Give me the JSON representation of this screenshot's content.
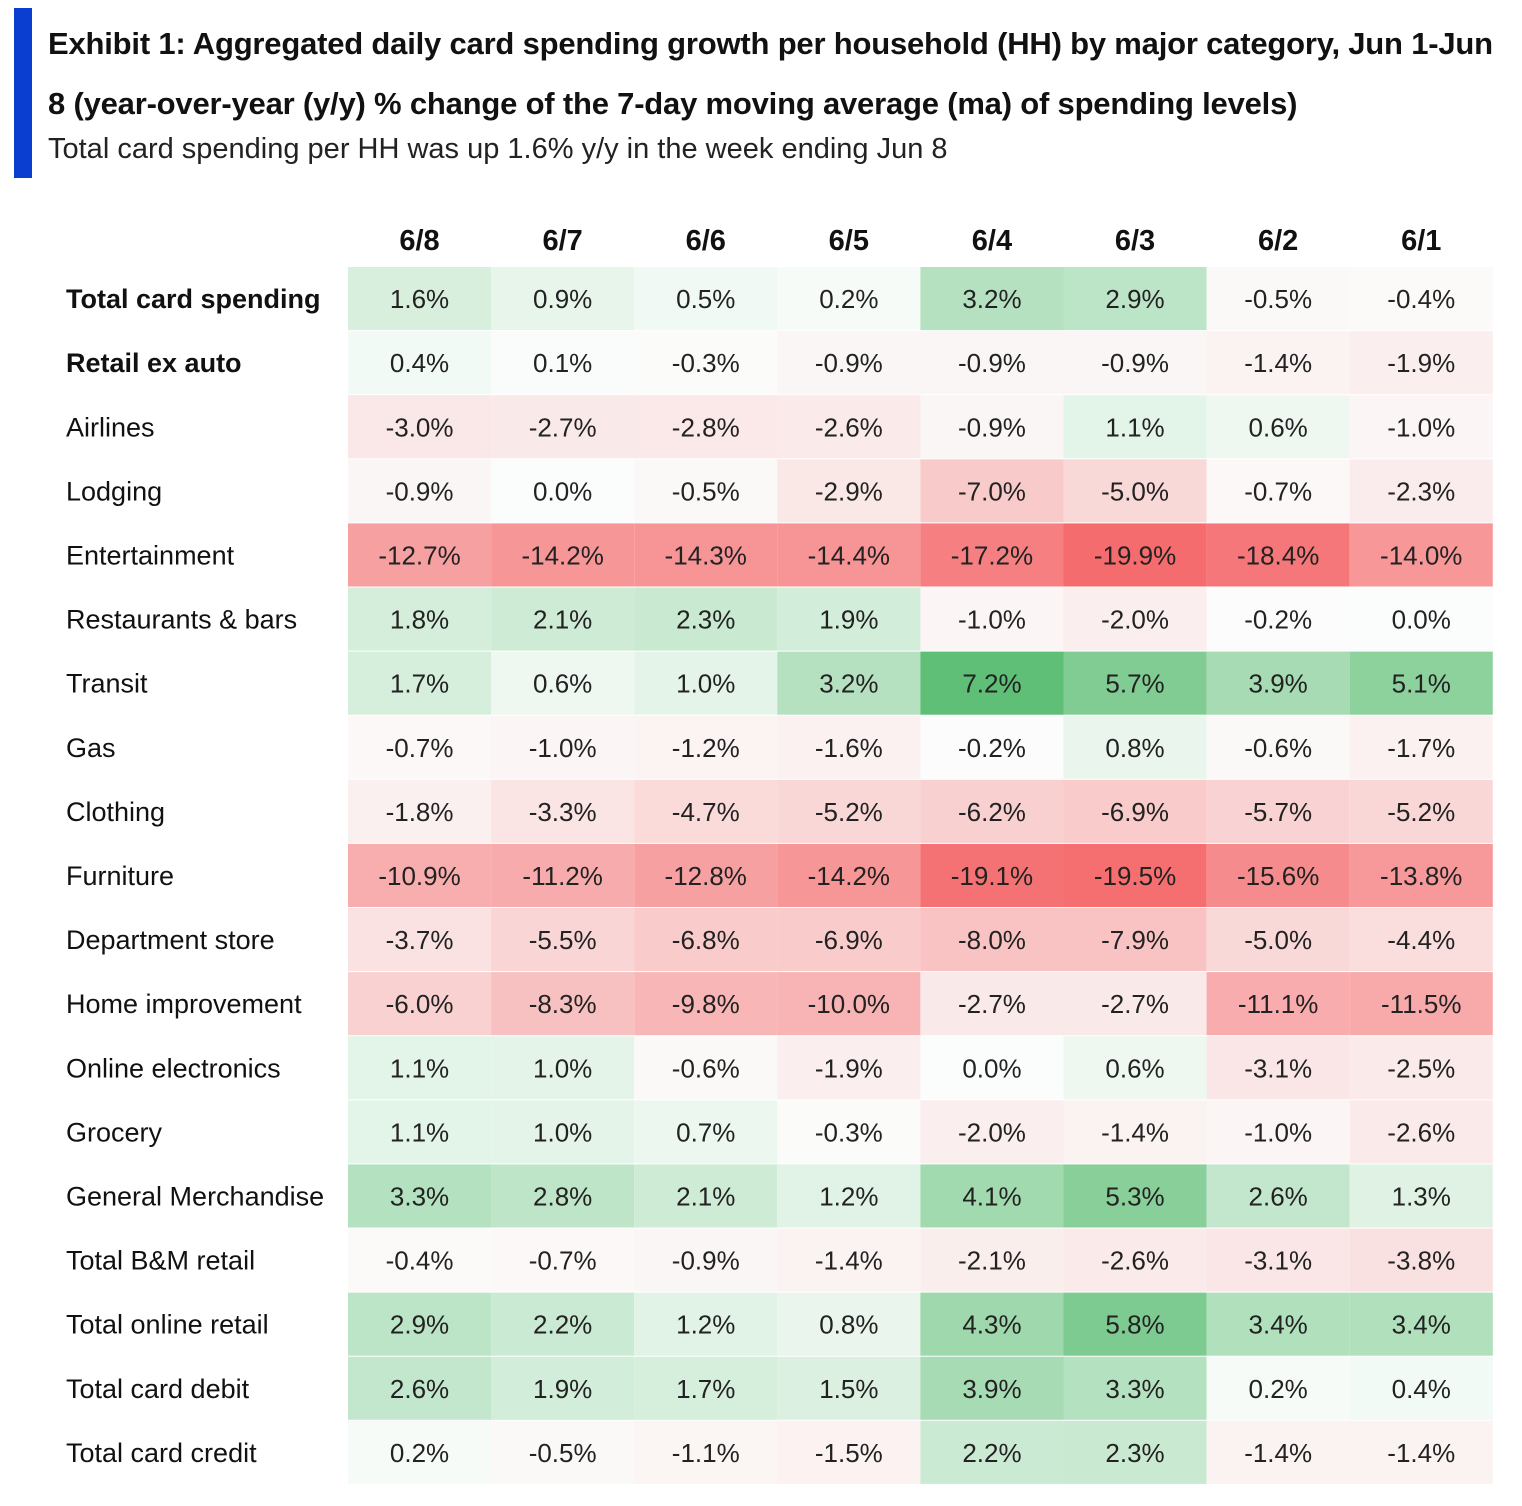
{
  "title": "Exhibit 1: Aggregated daily card spending growth per household (HH) by major category, Jun 1-Jun 8 (year-over-year (y/y) % change of the 7-day moving average (ma) of spending levels)",
  "subtitle": "Total card spending per HH was up 1.6% y/y in the week ending Jun 8",
  "colors": {
    "accent_bar": "#0a3ed1",
    "positive": "#5fbf76",
    "negative": "#f56c6e",
    "neutral": "#ffffff"
  },
  "chart_data": {
    "type": "heatmap",
    "value_format": "percent",
    "columns": [
      "6/8",
      "6/7",
      "6/6",
      "6/5",
      "6/4",
      "6/3",
      "6/2",
      "6/1"
    ],
    "rows": [
      {
        "label": "Total card spending",
        "bold": true,
        "values": [
          1.6,
          0.9,
          0.5,
          0.2,
          3.2,
          2.9,
          -0.5,
          -0.4
        ]
      },
      {
        "label": "Retail ex auto",
        "bold": true,
        "values": [
          0.4,
          0.1,
          -0.3,
          -0.9,
          -0.9,
          -0.9,
          -1.4,
          -1.9
        ]
      },
      {
        "label": "Airlines",
        "bold": false,
        "values": [
          -3.0,
          -2.7,
          -2.8,
          -2.6,
          -0.9,
          1.1,
          0.6,
          -1.0
        ]
      },
      {
        "label": "Lodging",
        "bold": false,
        "values": [
          -0.9,
          0.0,
          -0.5,
          -2.9,
          -7.0,
          -5.0,
          -0.7,
          -2.3
        ]
      },
      {
        "label": "Entertainment",
        "bold": false,
        "values": [
          -12.7,
          -14.2,
          -14.3,
          -14.4,
          -17.2,
          -19.9,
          -18.4,
          -14.0
        ]
      },
      {
        "label": "Restaurants & bars",
        "bold": false,
        "values": [
          1.8,
          2.1,
          2.3,
          1.9,
          -1.0,
          -2.0,
          -0.2,
          0.0
        ]
      },
      {
        "label": "Transit",
        "bold": false,
        "values": [
          1.7,
          0.6,
          1.0,
          3.2,
          7.2,
          5.7,
          3.9,
          5.1
        ]
      },
      {
        "label": "Gas",
        "bold": false,
        "values": [
          -0.7,
          -1.0,
          -1.2,
          -1.6,
          -0.2,
          0.8,
          -0.6,
          -1.7
        ]
      },
      {
        "label": "Clothing",
        "bold": false,
        "values": [
          -1.8,
          -3.3,
          -4.7,
          -5.2,
          -6.2,
          -6.9,
          -5.7,
          -5.2
        ]
      },
      {
        "label": "Furniture",
        "bold": false,
        "values": [
          -10.9,
          -11.2,
          -12.8,
          -14.2,
          -19.1,
          -19.5,
          -15.6,
          -13.8
        ]
      },
      {
        "label": "Department store",
        "bold": false,
        "values": [
          -3.7,
          -5.5,
          -6.8,
          -6.9,
          -8.0,
          -7.9,
          -5.0,
          -4.4
        ]
      },
      {
        "label": "Home improvement",
        "bold": false,
        "values": [
          -6.0,
          -8.3,
          -9.8,
          -10.0,
          -2.7,
          -2.7,
          -11.1,
          -11.5
        ]
      },
      {
        "label": "Online electronics",
        "bold": false,
        "values": [
          1.1,
          1.0,
          -0.6,
          -1.9,
          0.0,
          0.6,
          -3.1,
          -2.5
        ]
      },
      {
        "label": "Grocery",
        "bold": false,
        "values": [
          1.1,
          1.0,
          0.7,
          -0.3,
          -2.0,
          -1.4,
          -1.0,
          -2.6
        ]
      },
      {
        "label": "General Merchandise",
        "bold": false,
        "values": [
          3.3,
          2.8,
          2.1,
          1.2,
          4.1,
          5.3,
          2.6,
          1.3
        ]
      },
      {
        "label": "Total B&M retail",
        "bold": false,
        "values": [
          -0.4,
          -0.7,
          -0.9,
          -1.4,
          -2.1,
          -2.6,
          -3.1,
          -3.8
        ]
      },
      {
        "label": "Total online retail",
        "bold": false,
        "values": [
          2.9,
          2.2,
          1.2,
          0.8,
          4.3,
          5.8,
          3.4,
          3.4
        ]
      },
      {
        "label": "Total card debit",
        "bold": false,
        "values": [
          2.6,
          1.9,
          1.7,
          1.5,
          3.9,
          3.3,
          0.2,
          0.4
        ]
      },
      {
        "label": "Total card credit",
        "bold": false,
        "values": [
          0.2,
          -0.5,
          -1.1,
          -1.5,
          2.2,
          2.3,
          -1.4,
          -1.4
        ]
      }
    ]
  }
}
